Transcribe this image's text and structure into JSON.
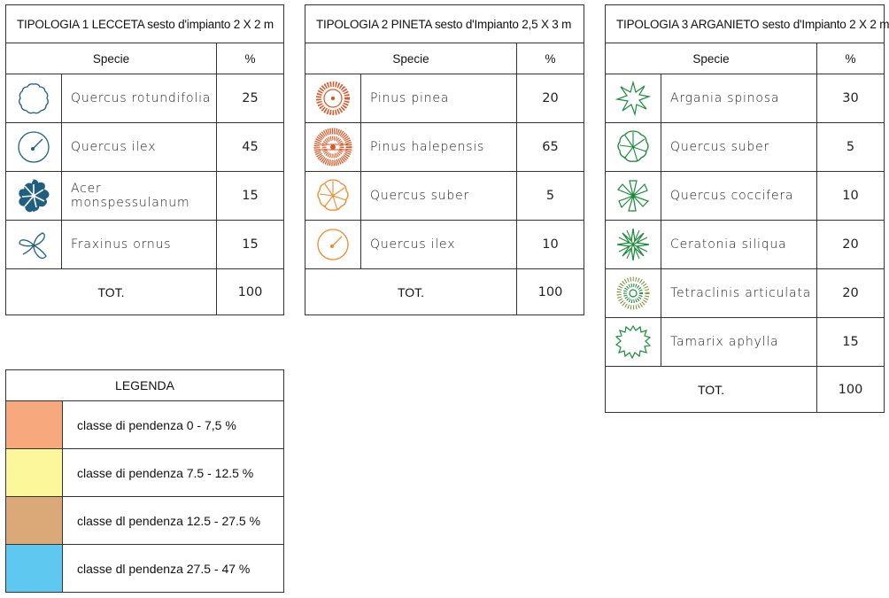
{
  "colors": {
    "type1_icon": "#1f5f80",
    "type2_icon": "#d85a2a",
    "type2_icon_light": "#ee8a2f",
    "type3_icon": "#1a8a3a",
    "slope_0_7_5": "#f7a97d",
    "slope_7_5_12_5": "#fbf79a",
    "slope_12_5_27_5": "#dba877",
    "slope_27_5_47": "#5ec8f0"
  },
  "tables": [
    {
      "title": "TIPOLOGIA 1 LECCETA sesto d'impianto 2 X 2 m",
      "header": {
        "species": "Specie",
        "pct": "%"
      },
      "rows": [
        {
          "icon": "cloud-outline-icon",
          "name": "Quercus rotundifolia",
          "pct": "25"
        },
        {
          "icon": "circle-radius-icon",
          "name": "Quercus ilex",
          "pct": "45"
        },
        {
          "icon": "lobed-leaf-icon",
          "name": "Acer monspessulanum",
          "pct": "15"
        },
        {
          "icon": "three-leaf-icon",
          "name": "Fraxinus ornus",
          "pct": "15"
        }
      ],
      "total_label": "TOT.",
      "total_value": "100"
    },
    {
      "title": "TIPOLOGIA 2 PINETA  sesto d'Impianto 2,5 X 3 m",
      "header": {
        "species": "Specie",
        "pct": "%"
      },
      "rows": [
        {
          "icon": "radial-pine-icon",
          "name": "Pinus pinea",
          "pct": "20"
        },
        {
          "icon": "dense-pine-icon",
          "name": "Pinus halepensis",
          "pct": "65"
        },
        {
          "icon": "segmented-circle-icon",
          "name": "Quercus suber",
          "pct": "5"
        },
        {
          "icon": "circle-radius-icon",
          "name": "Quercus ilex",
          "pct": "10"
        }
      ],
      "total_label": "TOT.",
      "total_value": "100"
    },
    {
      "title": "TIPOLOGIA 3 ARGANIETO  sesto d'Impianto 2 X 2 m",
      "header": {
        "species": "Specie",
        "pct": "%"
      },
      "rows": [
        {
          "icon": "spiky-star-icon",
          "name": "Argania spinosa",
          "pct": "30"
        },
        {
          "icon": "segmented-circle-icon",
          "name": "Quercus suber",
          "pct": "5"
        },
        {
          "icon": "petal-star-icon",
          "name": "Quercus coccifera",
          "pct": "10"
        },
        {
          "icon": "starburst-icon",
          "name": "Ceratonia siliqua",
          "pct": "20"
        },
        {
          "icon": "dotted-burst-icon",
          "name": "Tetraclinis articulata",
          "pct": "20"
        },
        {
          "icon": "jagged-outline-icon",
          "name": "Tamarix aphylla",
          "pct": "15"
        }
      ],
      "total_label": "TOT.",
      "total_value": "100"
    }
  ],
  "legend": {
    "title": "LEGENDA",
    "items": [
      {
        "label": "classe di pendenza 0 - 7,5 %"
      },
      {
        "label": "classe di pendenza 7.5 - 12.5 %"
      },
      {
        "label": "classe dl pendenza 12.5 - 27.5 %"
      },
      {
        "label": "classe dl pendenza  27.5 - 47 %"
      }
    ]
  }
}
